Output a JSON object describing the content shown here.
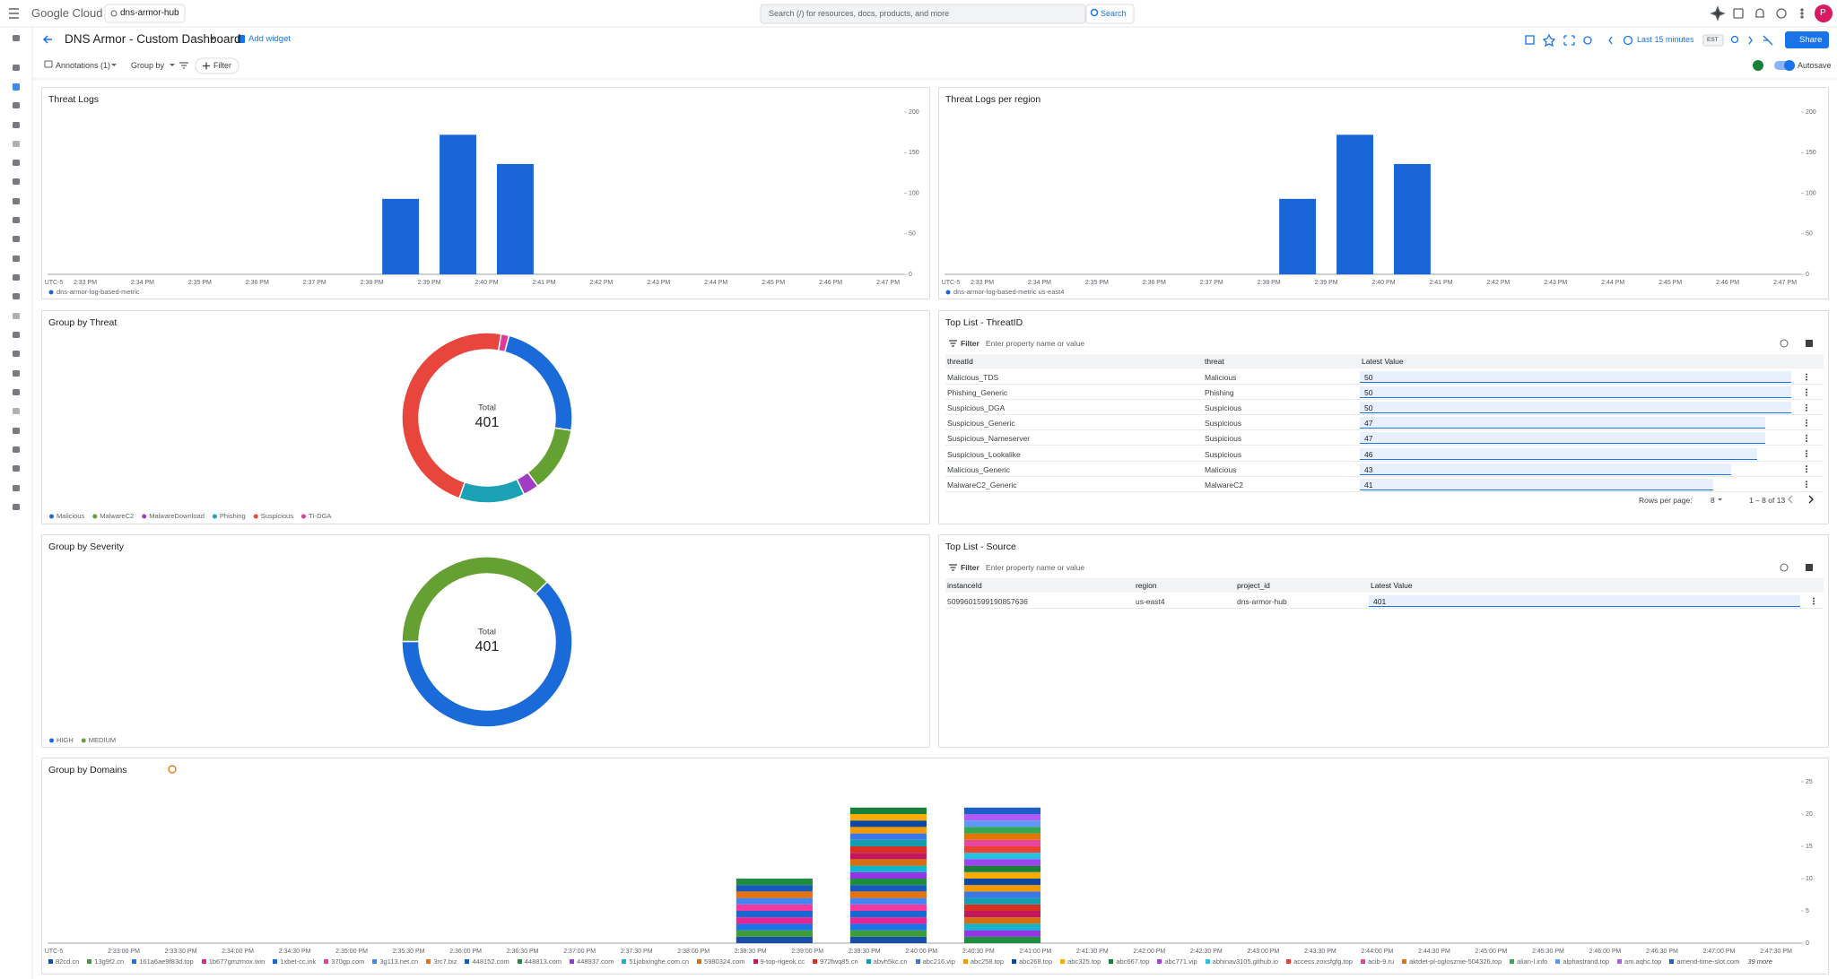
{
  "header": {
    "brand": "Google Cloud",
    "project": "dns-armor-hub",
    "search_placeholder": "Search (/) for resources, docs, products, and more",
    "search_button": "Search",
    "avatar": "P"
  },
  "dashboard": {
    "title": "DNS Armor - Custom Dashboard",
    "add_widget": "Add widget",
    "time_range": "Last 15 minutes",
    "timezone": "EST",
    "share": "Share",
    "annotations": "Annotations (1)",
    "group_by": "Group by",
    "filter": "Filter",
    "autosave": "Autosave"
  },
  "chart_data": [
    {
      "type": "bar",
      "title": "Threat Logs",
      "timezone": "UTC-5",
      "xticks": [
        "2:33 PM",
        "2:34 PM",
        "2:35 PM",
        "2:36 PM",
        "2:37 PM",
        "2:38 PM",
        "2:39 PM",
        "2:40 PM",
        "2:41 PM",
        "2:42 PM",
        "2:43 PM",
        "2:44 PM",
        "2:45 PM",
        "2:46 PM",
        "2:47 PM"
      ],
      "x": [
        "2:38 PM",
        "2:39 PM",
        "2:40 PM"
      ],
      "series": [
        {
          "name": "dns-armor-log-based-metric",
          "color": "#1a66d8",
          "values": [
            93,
            172,
            136
          ]
        }
      ],
      "ylim": [
        0,
        200
      ],
      "yticks": [
        0,
        50,
        100,
        150,
        200
      ]
    },
    {
      "type": "bar",
      "title": "Threat Logs per region",
      "timezone": "UTC-5",
      "xticks": [
        "2:33 PM",
        "2:34 PM",
        "2:35 PM",
        "2:36 PM",
        "2:37 PM",
        "2:38 PM",
        "2:39 PM",
        "2:40 PM",
        "2:41 PM",
        "2:42 PM",
        "2:43 PM",
        "2:44 PM",
        "2:45 PM",
        "2:46 PM",
        "2:47 PM"
      ],
      "x": [
        "2:38 PM",
        "2:39 PM",
        "2:40 PM"
      ],
      "series": [
        {
          "name": "dns-armor-log-based-metric us-east4",
          "color": "#1a66d8",
          "values": [
            93,
            172,
            136
          ]
        }
      ],
      "ylim": [
        0,
        200
      ],
      "yticks": [
        0,
        50,
        100,
        150,
        200
      ]
    },
    {
      "type": "donut",
      "title": "Group by Threat",
      "center_label": "Total",
      "center_value": 401,
      "categories": [
        "Malicious",
        "MalwareC2",
        "MalwareDownload",
        "Phishing",
        "Suspicious",
        "TI-DGA"
      ],
      "values": [
        93,
        50,
        12,
        50,
        190,
        6
      ],
      "colors": [
        "#1a6ad9",
        "#65a033",
        "#a13dc4",
        "#1aa2b4",
        "#e8453c",
        "#e0399b"
      ]
    },
    {
      "type": "donut",
      "title": "Group by Severity",
      "center_label": "Total",
      "center_value": 401,
      "categories": [
        "HIGH",
        "MEDIUM"
      ],
      "values": [
        251,
        150
      ],
      "colors": [
        "#1a6ad9",
        "#65a033"
      ]
    },
    {
      "type": "stacked_bar",
      "title": "Group by Domains",
      "timezone": "UTC-5",
      "xticks": [
        "2:33:00 PM",
        "2:33:30 PM",
        "2:34:00 PM",
        "2:34:30 PM",
        "2:35:00 PM",
        "2:35:30 PM",
        "2:36:00 PM",
        "2:36:30 PM",
        "2:37:00 PM",
        "2:37:30 PM",
        "2:38:00 PM",
        "2:38:30 PM",
        "2:39:00 PM",
        "2:39:30 PM",
        "2:40:00 PM",
        "2:40:30 PM",
        "2:41:00 PM",
        "2:41:30 PM",
        "2:42:00 PM",
        "2:42:30 PM",
        "2:43:00 PM",
        "2:43:30 PM",
        "2:44:00 PM",
        "2:44:30 PM",
        "2:45:00 PM",
        "2:45:30 PM",
        "2:46:00 PM",
        "2:46:30 PM",
        "2:47:00 PM",
        "2:47:30 PM"
      ],
      "x": [
        "2:38:30 PM",
        "2:39:30 PM",
        "2:40:30 PM"
      ],
      "ylim": [
        0,
        25
      ],
      "yticks": [
        0,
        5,
        10,
        15,
        20,
        25
      ],
      "more_label": "39 more",
      "series": [
        {
          "name": "82cd.cn",
          "color": "#174ea6",
          "values": [
            1,
            1,
            0
          ]
        },
        {
          "name": "13g9f2.cn",
          "color": "#3e9d36",
          "values": [
            1,
            1,
            0
          ]
        },
        {
          "name": "161a6ae9f83d.top",
          "color": "#1a73e8",
          "values": [
            1,
            1,
            0
          ]
        },
        {
          "name": "1b677gmzmox.win",
          "color": "#e52592",
          "values": [
            1,
            1,
            0
          ]
        },
        {
          "name": "1xbet-cc.ink",
          "color": "#1967d2",
          "values": [
            1,
            1,
            0
          ]
        },
        {
          "name": "370gp.com",
          "color": "#f538a0",
          "values": [
            1,
            1,
            0
          ]
        },
        {
          "name": "3g113.net.cn",
          "color": "#4285f4",
          "values": [
            1,
            1,
            0
          ]
        },
        {
          "name": "3rc7.biz",
          "color": "#e8710a",
          "values": [
            1,
            1,
            0
          ]
        },
        {
          "name": "448152.com",
          "color": "#185abc",
          "values": [
            1,
            1,
            0
          ]
        },
        {
          "name": "448813.com",
          "color": "#1e8e3e",
          "values": [
            1,
            1,
            1
          ]
        },
        {
          "name": "448937.com",
          "color": "#9334e6",
          "values": [
            0,
            1,
            1
          ]
        },
        {
          "name": "51jobxinghe.com.cn",
          "color": "#12b5cb",
          "values": [
            0,
            1,
            1
          ]
        },
        {
          "name": "5980324.com",
          "color": "#d56e0c",
          "values": [
            0,
            1,
            1
          ]
        },
        {
          "name": "9-top-rigeok.cc",
          "color": "#c2185b",
          "values": [
            0,
            1,
            1
          ]
        },
        {
          "name": "972fwq85.cn",
          "color": "#d93025",
          "values": [
            0,
            1,
            1
          ]
        },
        {
          "name": "abvh5kc.cn",
          "color": "#129eaf",
          "values": [
            0,
            1,
            1
          ]
        },
        {
          "name": "abc216.vip",
          "color": "#3b78e7",
          "values": [
            0,
            1,
            1
          ]
        },
        {
          "name": "abc258.top",
          "color": "#f29900",
          "values": [
            0,
            1,
            1
          ]
        },
        {
          "name": "abc268.top",
          "color": "#0d47a1",
          "values": [
            0,
            1,
            1
          ]
        },
        {
          "name": "abc325.top",
          "color": "#f9ab00",
          "values": [
            0,
            1,
            1
          ]
        },
        {
          "name": "abc667.top",
          "color": "#188038",
          "values": [
            0,
            1,
            1
          ]
        },
        {
          "name": "abc771.vip",
          "color": "#a142f4",
          "values": [
            0,
            0,
            1
          ]
        },
        {
          "name": "abhinav3105.github.io",
          "color": "#24c1e0",
          "values": [
            0,
            0,
            1
          ]
        },
        {
          "name": "access.zoxsfgfg.top",
          "color": "#ea4335",
          "values": [
            0,
            0,
            1
          ]
        },
        {
          "name": "acib-9.ru",
          "color": "#e8459c",
          "values": [
            0,
            0,
            1
          ]
        },
        {
          "name": "aktdet-pl-oglosznie-504326.top",
          "color": "#e37400",
          "values": [
            0,
            0,
            1
          ]
        },
        {
          "name": "alian-l.info",
          "color": "#34a853",
          "values": [
            0,
            0,
            1
          ]
        },
        {
          "name": "alphastrand.top",
          "color": "#5e97f6",
          "values": [
            0,
            0,
            1
          ]
        },
        {
          "name": "am.aqhc.top",
          "color": "#af5cf7",
          "values": [
            0,
            0,
            1
          ]
        },
        {
          "name": "amend-time-slot.com",
          "color": "#1b5fc7",
          "values": [
            0,
            0,
            1
          ]
        }
      ]
    }
  ],
  "tables": [
    {
      "title": "Top List - ThreatID",
      "filter_label": "Filter",
      "filter_placeholder": "Enter property name or value",
      "columns": [
        "threatId",
        "threat",
        "Latest Value"
      ],
      "rows": [
        [
          "Malicious_TDS",
          "Malicious",
          50
        ],
        [
          "Phishing_Generic",
          "Phishing",
          50
        ],
        [
          "Suspicious_DGA",
          "Suspicious",
          50
        ],
        [
          "Suspicious_Generic",
          "Suspicious",
          47
        ],
        [
          "Suspicious_Nameserver",
          "Suspicious",
          47
        ],
        [
          "Suspicious_Lookalike",
          "Suspicious",
          46
        ],
        [
          "Malicious_Generic",
          "Malicious",
          43
        ],
        [
          "MalwareC2_Generic",
          "MalwareC2",
          41
        ]
      ],
      "rows_per_page_label": "Rows per page:",
      "rows_per_page": 8,
      "range_label": "1 – 8 of 13"
    },
    {
      "title": "Top List - Source",
      "filter_label": "Filter",
      "filter_placeholder": "Enter property name or value",
      "columns": [
        "instanceId",
        "region",
        "project_id",
        "Latest Value"
      ],
      "rows": [
        [
          "5099601599190857636",
          "us-east4",
          "dns-armor-hub",
          401
        ]
      ]
    }
  ]
}
